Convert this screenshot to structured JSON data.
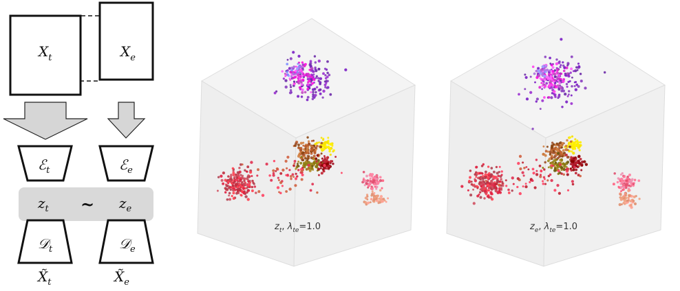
{
  "diagram": {
    "input_t": "X",
    "input_t_sub": "t",
    "input_e": "X",
    "input_e_sub": "e",
    "encoder_t": "ℰ",
    "encoder_t_sub": "t",
    "encoder_e": "ℰ",
    "encoder_e_sub": "e",
    "latent_t": "z",
    "latent_t_sub": "t",
    "latent_e": "z",
    "latent_e_sub": "e",
    "similarity": "~",
    "decoder_t": "𝒟",
    "decoder_t_sub": "t",
    "decoder_e": "𝒟",
    "decoder_e_sub": "e",
    "recon_t": "X̃",
    "recon_t_sub": "t",
    "recon_e": "X̃",
    "recon_e_sub": "e"
  },
  "plots": [
    {
      "z": "z",
      "z_sub": "t",
      "sep": ", ",
      "lambda": "λ",
      "lambda_sub": "te",
      "value": "=1.0"
    },
    {
      "z": "z",
      "z_sub": "e",
      "sep": ", ",
      "lambda": "λ",
      "lambda_sub": "te",
      "value": "=1.0"
    }
  ],
  "colors": {
    "arrow_fill": "#d6d6d6",
    "latent_band": "#d9d9d9",
    "cube_face_top": "#f4f4f4",
    "cube_face_left": "#efefef",
    "cube_face_right": "#f1f1f1"
  },
  "clusters": [
    {
      "name": "purple-top",
      "colors": [
        "#7a1fc4",
        "#9b30d0",
        "#6d2aa8",
        "#8a3fc0"
      ],
      "n": 140
    },
    {
      "name": "magenta-top",
      "colors": [
        "#ff10e0",
        "#e020d0",
        "#ff40f0",
        "#c050c0",
        "#ff66ff"
      ],
      "n": 90
    },
    {
      "name": "lilac-top",
      "colors": [
        "#8090ff",
        "#a0a0ff",
        "#b070e0"
      ],
      "n": 20
    },
    {
      "name": "yellow",
      "colors": [
        "#ffee00",
        "#f5e000",
        "#fff200"
      ],
      "n": 55
    },
    {
      "name": "brown-center",
      "colors": [
        "#a0522d",
        "#c06030",
        "#8b4513",
        "#d08040"
      ],
      "n": 110
    },
    {
      "name": "olive-center",
      "colors": [
        "#8b7a10",
        "#6b5a10",
        "#9a8a20",
        "#b08a20"
      ],
      "n": 70
    },
    {
      "name": "darkred-center",
      "colors": [
        "#a01020",
        "#c02030",
        "#8b0000"
      ],
      "n": 60
    },
    {
      "name": "red-left",
      "colors": [
        "#e02040",
        "#c03040",
        "#ff4050",
        "#b04050",
        "#d05060"
      ],
      "n": 200
    },
    {
      "name": "pink-right",
      "colors": [
        "#ff6080",
        "#ff80a0",
        "#f090b0",
        "#e05070"
      ],
      "n": 80
    },
    {
      "name": "salmon-right",
      "colors": [
        "#ffa090",
        "#f0a080",
        "#e09070"
      ],
      "n": 50
    },
    {
      "name": "scatter-red",
      "colors": [
        "#e03050",
        "#c02030",
        "#ff4060",
        "#d06040"
      ],
      "n": 70
    }
  ]
}
